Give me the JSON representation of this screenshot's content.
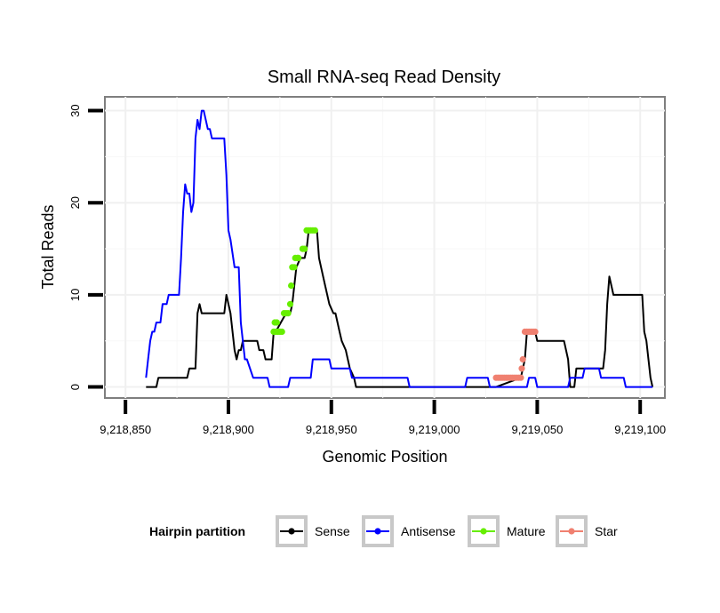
{
  "chart_data": {
    "type": "line",
    "title": "Small RNA-seq Read Density",
    "xlabel": "Genomic Position",
    "ylabel": "Total Reads",
    "xlim": [
      9218840,
      9219112
    ],
    "ylim": [
      -1.2,
      31.5
    ],
    "x_ticks": [
      9218850,
      9218900,
      9218950,
      9219000,
      9219050,
      9219100
    ],
    "x_tick_labels": [
      "9,218,850",
      "9,218,900",
      "9,218,950",
      "9,219,000",
      "9,219,050",
      "9,219,100"
    ],
    "y_ticks": [
      0,
      10,
      20,
      30
    ],
    "y_tick_labels": [
      "0",
      "10",
      "20",
      "30"
    ],
    "legend": {
      "title": "Hairpin partition",
      "position": "bottom",
      "entries": [
        "Sense",
        "Antisense",
        "Mature",
        "Star"
      ]
    },
    "series": [
      {
        "name": "Sense",
        "color": "#000000",
        "points": [
          [
            9218860,
            0
          ],
          [
            9218865,
            0
          ],
          [
            9218866,
            1
          ],
          [
            9218880,
            1
          ],
          [
            9218881,
            2
          ],
          [
            9218884,
            2
          ],
          [
            9218885,
            8
          ],
          [
            9218886,
            9
          ],
          [
            9218887,
            8
          ],
          [
            9218898,
            8
          ],
          [
            9218899,
            10
          ],
          [
            9218900,
            9
          ],
          [
            9218901,
            8
          ],
          [
            9218903,
            4
          ],
          [
            9218904,
            3
          ],
          [
            9218905,
            4
          ],
          [
            9218906,
            4
          ],
          [
            9218907,
            5
          ],
          [
            9218914,
            5
          ],
          [
            9218915,
            4
          ],
          [
            9218917,
            4
          ],
          [
            9218918,
            3
          ],
          [
            9218921,
            3
          ],
          [
            9218922,
            6
          ],
          [
            9218923,
            6
          ],
          [
            9218928,
            8
          ],
          [
            9218930,
            8
          ],
          [
            9218931,
            9
          ],
          [
            9218932,
            11
          ],
          [
            9218933,
            13
          ],
          [
            9218935,
            14
          ],
          [
            9218937,
            14
          ],
          [
            9218938,
            15
          ],
          [
            9218939,
            17
          ],
          [
            9218943,
            17
          ],
          [
            9218944,
            14
          ],
          [
            9218945,
            13
          ],
          [
            9218947,
            11
          ],
          [
            9218949,
            9
          ],
          [
            9218951,
            8
          ],
          [
            9218952,
            8
          ],
          [
            9218953,
            7
          ],
          [
            9218954,
            6
          ],
          [
            9218955,
            5
          ],
          [
            9218957,
            4
          ],
          [
            9218958,
            3
          ],
          [
            9218959,
            2
          ],
          [
            9218961,
            1
          ],
          [
            9218962,
            0
          ],
          [
            9219030,
            0
          ],
          [
            9219042,
            1
          ],
          [
            9219043,
            2
          ],
          [
            9219044,
            3
          ],
          [
            9219045,
            6
          ],
          [
            9219049,
            6
          ],
          [
            9219050,
            5
          ],
          [
            9219063,
            5
          ],
          [
            9219065,
            3
          ],
          [
            9219066,
            0
          ],
          [
            9219068,
            0
          ],
          [
            9219069,
            2
          ],
          [
            9219082,
            2
          ],
          [
            9219083,
            4
          ],
          [
            9219084,
            9
          ],
          [
            9219085,
            12
          ],
          [
            9219086,
            11
          ],
          [
            9219087,
            10
          ],
          [
            9219101,
            10
          ],
          [
            9219102,
            6
          ],
          [
            9219103,
            5
          ],
          [
            9219104,
            3
          ],
          [
            9219105,
            1
          ],
          [
            9219106,
            0
          ]
        ]
      },
      {
        "name": "Antisense",
        "color": "#0000ff",
        "points": [
          [
            9218860,
            1
          ],
          [
            9218861,
            3
          ],
          [
            9218862,
            5
          ],
          [
            9218863,
            6
          ],
          [
            9218864,
            6
          ],
          [
            9218865,
            7
          ],
          [
            9218867,
            7
          ],
          [
            9218868,
            9
          ],
          [
            9218870,
            9
          ],
          [
            9218871,
            10
          ],
          [
            9218876,
            10
          ],
          [
            9218877,
            14
          ],
          [
            9218878,
            19
          ],
          [
            9218879,
            22
          ],
          [
            9218880,
            21
          ],
          [
            9218881,
            21
          ],
          [
            9218882,
            19
          ],
          [
            9218883,
            20
          ],
          [
            9218884,
            27
          ],
          [
            9218885,
            29
          ],
          [
            9218886,
            28
          ],
          [
            9218887,
            30
          ],
          [
            9218888,
            30
          ],
          [
            9218890,
            28
          ],
          [
            9218891,
            28
          ],
          [
            9218892,
            27
          ],
          [
            9218898,
            27
          ],
          [
            9218899,
            23
          ],
          [
            9218900,
            17
          ],
          [
            9218901,
            16
          ],
          [
            9218903,
            13
          ],
          [
            9218905,
            13
          ],
          [
            9218906,
            7
          ],
          [
            9218907,
            5
          ],
          [
            9218908,
            3
          ],
          [
            9218909,
            3
          ],
          [
            9218912,
            1
          ],
          [
            9218919,
            1
          ],
          [
            9218920,
            0
          ],
          [
            9218929,
            0
          ],
          [
            9218930,
            1
          ],
          [
            9218940,
            1
          ],
          [
            9218941,
            3
          ],
          [
            9218949,
            3
          ],
          [
            9218950,
            2
          ],
          [
            9218959,
            2
          ],
          [
            9218960,
            1
          ],
          [
            9218987,
            1
          ],
          [
            9218988,
            0
          ],
          [
            9219015,
            0
          ],
          [
            9219016,
            1
          ],
          [
            9219026,
            1
          ],
          [
            9219027,
            0
          ],
          [
            9219045,
            0
          ],
          [
            9219046,
            1
          ],
          [
            9219049,
            1
          ],
          [
            9219050,
            0
          ],
          [
            9219065,
            0
          ],
          [
            9219066,
            1
          ],
          [
            9219072,
            1
          ],
          [
            9219073,
            2
          ],
          [
            9219080,
            2
          ],
          [
            9219081,
            1
          ],
          [
            9219092,
            1
          ],
          [
            9219093,
            0
          ],
          [
            9219106,
            0
          ]
        ]
      },
      {
        "name": "Mature",
        "color": "#66ee00",
        "points": [
          [
            9218922,
            6
          ],
          [
            9218923,
            6
          ],
          [
            9218924,
            6
          ],
          [
            9218925,
            6
          ],
          [
            9218926,
            6
          ],
          [
            9218922.5,
            7
          ],
          [
            9218923.5,
            7
          ],
          [
            9218927,
            8
          ],
          [
            9218928,
            8
          ],
          [
            9218929,
            8
          ],
          [
            9218930,
            9
          ],
          [
            9218930.5,
            11
          ],
          [
            9218931,
            13
          ],
          [
            9218932,
            13
          ],
          [
            9218932.5,
            14
          ],
          [
            9218933.5,
            14
          ],
          [
            9218934,
            14
          ],
          [
            9218936,
            15
          ],
          [
            9218937,
            15
          ],
          [
            9218938,
            17
          ],
          [
            9218939,
            17
          ],
          [
            9218940,
            17
          ],
          [
            9218941,
            17
          ],
          [
            9218942,
            17
          ]
        ]
      },
      {
        "name": "Star",
        "color": "#f08070",
        "points": [
          [
            9219030,
            1
          ],
          [
            9219031,
            1
          ],
          [
            9219032,
            1
          ],
          [
            9219033,
            1
          ],
          [
            9219034,
            1
          ],
          [
            9219035,
            1
          ],
          [
            9219036,
            1
          ],
          [
            9219037,
            1
          ],
          [
            9219038,
            1
          ],
          [
            9219039,
            1
          ],
          [
            9219040,
            1
          ],
          [
            9219041,
            1
          ],
          [
            9219042,
            1
          ],
          [
            9219042.5,
            2
          ],
          [
            9219043,
            3
          ],
          [
            9219044,
            6
          ],
          [
            9219045,
            6
          ],
          [
            9219046,
            6
          ],
          [
            9219047,
            6
          ],
          [
            9219048,
            6
          ],
          [
            9219049,
            6
          ]
        ]
      }
    ]
  }
}
